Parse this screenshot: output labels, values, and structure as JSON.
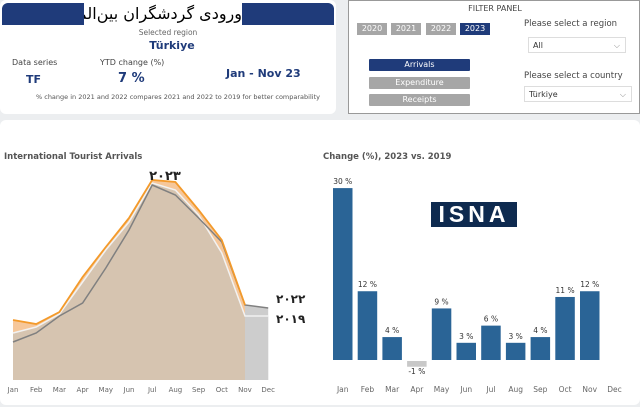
{
  "header": {
    "title": "ورودی گردشگران بین‌المللی",
    "selected_region_label": "Selected region",
    "selected_region": "Türkiye",
    "data_series_label": "Data series",
    "data_series": "TF",
    "ytd_label": "YTD change (%)",
    "ytd_value": "7 %",
    "period": "Jan - Nov 23",
    "note": "% change in 2021 and 2022 compares 2021 and 2022  to 2019 for better comparability"
  },
  "filter": {
    "title": "FILTER PANEL",
    "years": [
      "2020",
      "2021",
      "2022",
      "2023"
    ],
    "selected_year": "2023",
    "measures": [
      "Arrivals",
      "Expenditure",
      "Receipts"
    ],
    "selected_measure": "Arrivals",
    "region_label": "Please select a region",
    "region_value": "All",
    "country_label": "Please select a country",
    "country_value": "Türkiye",
    "chevron": "chevron-down-icon"
  },
  "colors": {
    "navy": "#1f3b7a",
    "orange": "#f39a2b",
    "bar": "#2a6496",
    "negative_bar": "#c8c8c8"
  },
  "watermark": "ISNA",
  "chart_data": [
    {
      "type": "area",
      "title": "International Tourist Arrivals",
      "y_axis": "none (relative index, values estimated)",
      "categories": [
        "Jan",
        "Feb",
        "Mar",
        "Apr",
        "May",
        "Jun",
        "Jul",
        "Aug",
        "Sep",
        "Oct",
        "Nov",
        "Dec"
      ],
      "series": [
        {
          "name": "۲۰۲۳",
          "color": "#f39a2b",
          "values": [
            60,
            56,
            68,
            103,
            133,
            162,
            200,
            198,
            170,
            140,
            75,
            null
          ]
        },
        {
          "name": "۲۰۲۲",
          "color": "#808080",
          "values": [
            38,
            47,
            64,
            77,
            112,
            150,
            195,
            185,
            162,
            138,
            75,
            72
          ]
        },
        {
          "name": "۲۰۱۹",
          "color": "#f2f2f2",
          "values": [
            47,
            53,
            66,
            98,
            130,
            158,
            197,
            190,
            165,
            127,
            64,
            64
          ]
        }
      ]
    },
    {
      "type": "bar",
      "title": "Change (%), 2023 vs. 2019",
      "categories": [
        "Jan",
        "Feb",
        "Mar",
        "Apr",
        "May",
        "Jun",
        "Jul",
        "Aug",
        "Sep",
        "Oct",
        "Nov",
        "Dec"
      ],
      "values": [
        30,
        12,
        4,
        -1,
        9,
        3,
        6,
        3,
        4,
        11,
        12,
        null
      ],
      "labels": [
        "30 %",
        "12 %",
        "4 %",
        "-1 %",
        "9 %",
        "3 %",
        "6 %",
        "3 %",
        "4 %",
        "11 %",
        "12 %",
        ""
      ]
    }
  ]
}
